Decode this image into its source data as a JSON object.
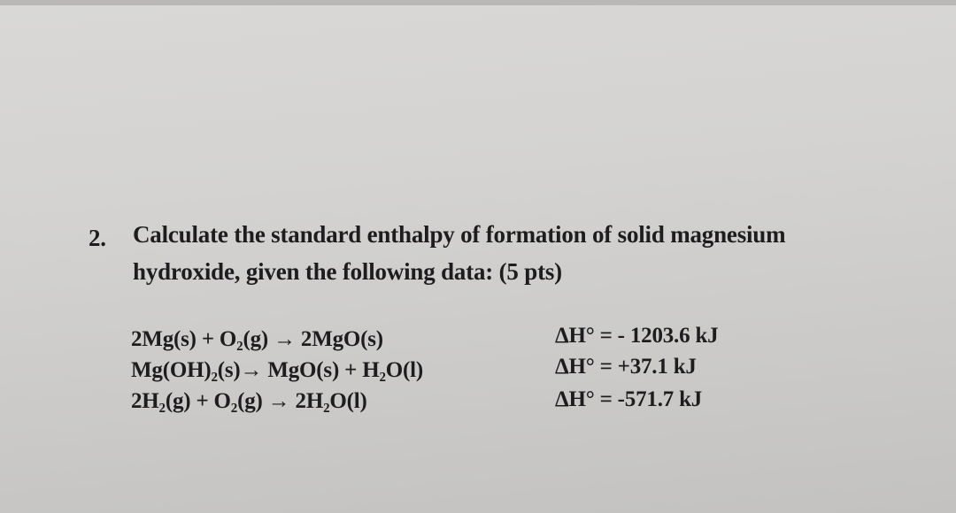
{
  "question": {
    "number": "2.",
    "lines": [
      "Calculate the standard enthalpy of formation of solid magnesium",
      "hydroxide, given the following data: (5 pts)"
    ]
  },
  "reactions": [
    {
      "equation": "2Mg(s) + O₂(g) → 2MgO(s)",
      "enthalpy": "ΔH° = - 1203.6 kJ"
    },
    {
      "equation": "Mg(OH)₂(s)→ MgO(s) + H₂O(l)",
      "enthalpy": "ΔH° = +37.1 kJ"
    },
    {
      "equation": "2H₂(g) + O₂(g) → 2H₂O(l)",
      "enthalpy": "ΔH° = -571.7 kJ"
    }
  ]
}
